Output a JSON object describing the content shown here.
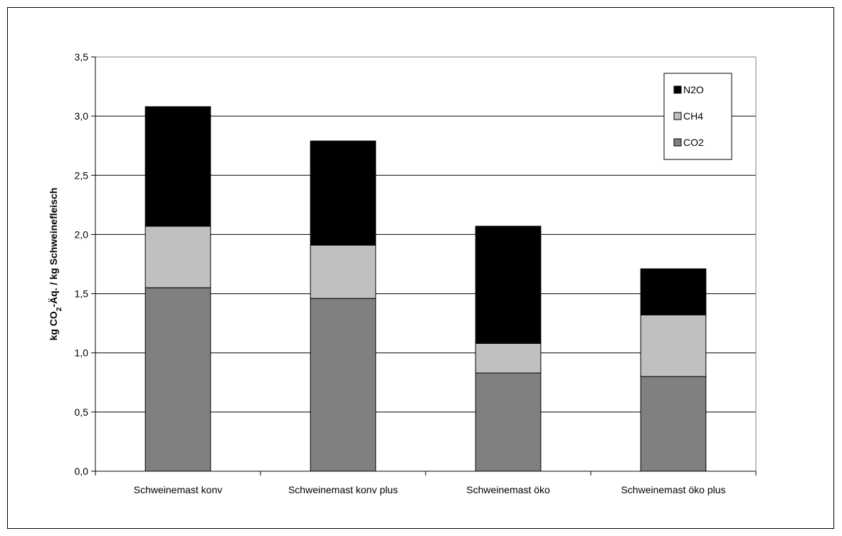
{
  "chart_data": {
    "type": "bar",
    "stacked": true,
    "categories": [
      "Schweinemast konv",
      "Schweinemast konv plus",
      "Schweinemast öko",
      "Schweinemast öko plus"
    ],
    "series": [
      {
        "name": "CO2",
        "values": [
          1.55,
          1.46,
          0.83,
          0.8
        ],
        "color": "#808080"
      },
      {
        "name": "CH4",
        "values": [
          0.52,
          0.45,
          0.25,
          0.52
        ],
        "color": "#c0c0c0"
      },
      {
        "name": "N2O",
        "values": [
          1.01,
          0.88,
          0.99,
          0.39
        ],
        "color": "#000000"
      }
    ],
    "title": "",
    "xlabel": "",
    "ylabel_parts": {
      "before": "kg CO",
      "sub": "2",
      "after": "-Äq. / kg Schweinefleisch"
    },
    "ylim": [
      0,
      3.5
    ],
    "yticks": [
      "0,0",
      "0,5",
      "1,0",
      "1,5",
      "2,0",
      "2,5",
      "3,0",
      "3,5"
    ],
    "grid": true,
    "legend_position": "top-right",
    "legend_order": [
      "N2O",
      "CH4",
      "CO2"
    ]
  }
}
